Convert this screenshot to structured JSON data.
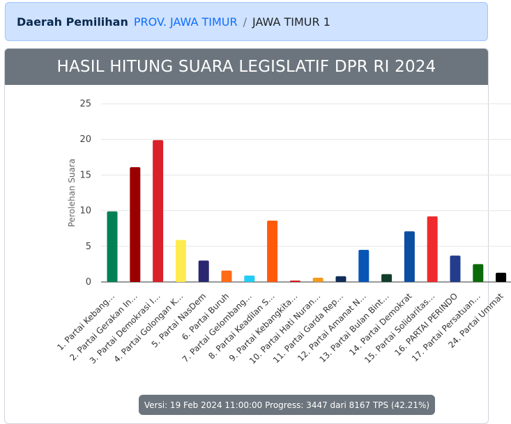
{
  "breadcrumb": {
    "label": "Daerah Pemilihan",
    "province": "PROV. JAWA TIMUR",
    "separator": "/",
    "district": "JAWA TIMUR 1"
  },
  "header": {
    "title": "HASIL HITUNG SUARA LEGISLATIF DPR RI 2024"
  },
  "chart_data": {
    "type": "bar",
    "title": "",
    "xlabel": "",
    "ylabel": "Perolehan Suara",
    "ylim": [
      0,
      25
    ],
    "yticks": [
      0,
      5,
      10,
      15,
      20,
      25
    ],
    "grid": true,
    "legend": "none",
    "categories": [
      "1. Partai Kebang…",
      "2. Partai Gerakan In…",
      "3. Partai Demokrasi I…",
      "4. Partai Golongan K…",
      "5. Partai NasDem",
      "6. Partai Buruh",
      "7. Partai Gelombang…",
      "8. Partai Keadilan S…",
      "9. Partai Kebangkita…",
      "10. Partai Hati Nuran…",
      "11. Partai Garda Rep…",
      "12. Partai Amanat N…",
      "13. Partai Bulan Bint…",
      "14. Partai Demokrat",
      "15. Partai Solidaritas…",
      "16. PARTAI PERINDO",
      "17. Partai Persatuan…",
      "24. Partai Ummat"
    ],
    "values": [
      9.9,
      16.1,
      19.9,
      5.9,
      3.0,
      1.6,
      0.9,
      8.6,
      0.2,
      0.6,
      0.8,
      4.5,
      1.1,
      7.1,
      9.2,
      3.7,
      2.5,
      1.3
    ],
    "colors": [
      "#008055",
      "#9a0000",
      "#d9212a",
      "#ffeb4f",
      "#2a2770",
      "#ff6b16",
      "#22ccf5",
      "#ff5a0a",
      "#d3141a",
      "#f39a1d",
      "#0f2d57",
      "#0756b5",
      "#123d2a",
      "#0b4fa3",
      "#ef2b2d",
      "#233d8c",
      "#0a6a0a",
      "#000000"
    ]
  },
  "footer": {
    "status": "Versi: 19 Feb 2024 11:00:00 Progress: 3447 dari 8167 TPS (42.21%)"
  }
}
